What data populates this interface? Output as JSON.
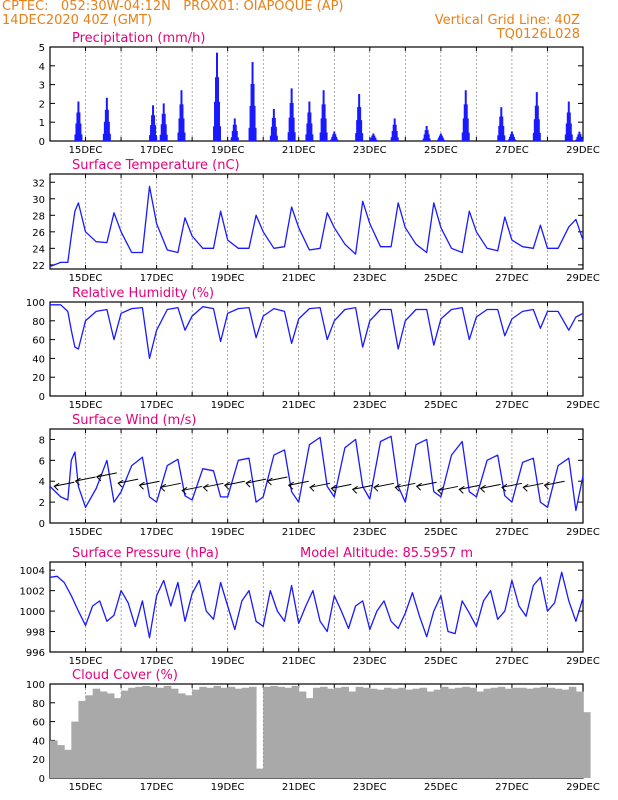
{
  "header": {
    "line1_left": "CPTEC:   052:30W-04:12N   PROX01: OIAPOQUE (AP)",
    "line2_left": "14DEC2020 40Z (GMT)",
    "line2_right": "Vertical Grid Line: 40Z",
    "line3_right": "TQ0126L028"
  },
  "colors": {
    "header": "#e8801a",
    "title": "#e8007a",
    "line": "#1a1aff",
    "cloud": "#a9a9a9"
  },
  "chart_data": [
    {
      "type": "bar",
      "title": "Precipitation (mm/h)",
      "x_tick_labels": [
        "15DEC",
        "17DEC",
        "19DEC",
        "21DEC",
        "23DEC",
        "25DEC",
        "27DEC",
        "29DEC"
      ],
      "ylim": [
        0,
        5
      ],
      "y_ticks": [
        0,
        1,
        2,
        3,
        4,
        5
      ],
      "events": [
        {
          "day": 14.8,
          "peak": 2.1
        },
        {
          "day": 15.6,
          "peak": 2.3
        },
        {
          "day": 16.9,
          "peak": 1.9
        },
        {
          "day": 17.2,
          "peak": 2.0
        },
        {
          "day": 17.7,
          "peak": 2.7
        },
        {
          "day": 18.7,
          "peak": 4.7
        },
        {
          "day": 19.2,
          "peak": 1.2
        },
        {
          "day": 19.7,
          "peak": 4.2
        },
        {
          "day": 20.3,
          "peak": 1.7
        },
        {
          "day": 20.8,
          "peak": 2.8
        },
        {
          "day": 21.3,
          "peak": 2.1
        },
        {
          "day": 21.7,
          "peak": 2.7
        },
        {
          "day": 22.0,
          "peak": 0.5
        },
        {
          "day": 22.7,
          "peak": 2.5
        },
        {
          "day": 23.1,
          "peak": 0.4
        },
        {
          "day": 23.7,
          "peak": 1.2
        },
        {
          "day": 24.6,
          "peak": 0.8
        },
        {
          "day": 25.0,
          "peak": 0.4
        },
        {
          "day": 25.7,
          "peak": 2.7
        },
        {
          "day": 26.7,
          "peak": 1.8
        },
        {
          "day": 27.0,
          "peak": 0.5
        },
        {
          "day": 27.7,
          "peak": 2.6
        },
        {
          "day": 28.6,
          "peak": 2.1
        },
        {
          "day": 28.9,
          "peak": 0.5
        }
      ]
    },
    {
      "type": "line",
      "title": "Surface Temperature (nC)",
      "x_tick_labels": [
        "15DEC",
        "17DEC",
        "19DEC",
        "21DEC",
        "23DEC",
        "25DEC",
        "27DEC",
        "29DEC"
      ],
      "ylim": [
        21.5,
        33
      ],
      "y_ticks": [
        22,
        24,
        26,
        28,
        30,
        32
      ],
      "x": [
        14,
        14.3,
        14.5,
        14.6,
        14.7,
        14.8,
        15.0,
        15.3,
        15.6,
        15.8,
        16.0,
        16.3,
        16.6,
        16.8,
        17.0,
        17.3,
        17.6,
        17.8,
        18.0,
        18.3,
        18.6,
        18.8,
        19.0,
        19.3,
        19.6,
        19.8,
        20.0,
        20.3,
        20.6,
        20.8,
        21.0,
        21.3,
        21.6,
        21.8,
        22.0,
        22.3,
        22.6,
        22.8,
        23.0,
        23.3,
        23.6,
        23.8,
        24.0,
        24.3,
        24.6,
        24.8,
        25.0,
        25.3,
        25.6,
        25.8,
        26.0,
        26.3,
        26.6,
        26.8,
        27.0,
        27.3,
        27.6,
        27.8,
        28.0,
        28.3,
        28.6,
        28.8,
        29.0
      ],
      "y": [
        21.8,
        22.3,
        22.3,
        25.5,
        28.5,
        29.5,
        26.0,
        24.8,
        24.7,
        28.3,
        26.0,
        23.5,
        23.5,
        31.5,
        27.0,
        23.8,
        23.5,
        27.7,
        25.5,
        24.0,
        24.0,
        28.5,
        25.0,
        24.0,
        24.0,
        28.0,
        26.0,
        24.0,
        24.2,
        29.0,
        26.5,
        23.8,
        24.0,
        28.3,
        26.5,
        24.5,
        23.3,
        29.7,
        27.0,
        24.2,
        24.2,
        29.5,
        26.5,
        24.5,
        23.5,
        29.5,
        26.5,
        24.0,
        23.5,
        28.5,
        26.0,
        24.0,
        23.7,
        27.8,
        25.0,
        24.2,
        24.0,
        26.8,
        24.0,
        24.0,
        26.6,
        27.5,
        25.0
      ]
    },
    {
      "type": "line",
      "title": "Relative Humidity (%)",
      "x_tick_labels": [
        "15DEC",
        "17DEC",
        "19DEC",
        "21DEC",
        "23DEC",
        "25DEC",
        "27DEC",
        "29DEC"
      ],
      "ylim": [
        0,
        100
      ],
      "y_ticks": [
        0,
        20,
        40,
        60,
        80,
        100
      ],
      "x": [
        14,
        14.3,
        14.5,
        14.6,
        14.7,
        14.8,
        15.0,
        15.3,
        15.6,
        15.8,
        16.0,
        16.3,
        16.6,
        16.8,
        17.0,
        17.3,
        17.6,
        17.8,
        18.0,
        18.3,
        18.6,
        18.8,
        19.0,
        19.3,
        19.6,
        19.8,
        20.0,
        20.3,
        20.6,
        20.8,
        21.0,
        21.3,
        21.6,
        21.8,
        22.0,
        22.3,
        22.6,
        22.8,
        23.0,
        23.3,
        23.6,
        23.8,
        24.0,
        24.3,
        24.6,
        24.8,
        25.0,
        25.3,
        25.6,
        25.8,
        26.0,
        26.3,
        26.6,
        26.8,
        27.0,
        27.3,
        27.6,
        27.8,
        28.0,
        28.3,
        28.6,
        28.8,
        29.0
      ],
      "y": [
        97,
        97,
        90,
        70,
        52,
        50,
        80,
        90,
        92,
        60,
        88,
        93,
        94,
        40,
        70,
        92,
        94,
        70,
        85,
        95,
        93,
        58,
        88,
        93,
        94,
        62,
        85,
        93,
        90,
        56,
        82,
        93,
        94,
        60,
        80,
        92,
        94,
        52,
        80,
        92,
        92,
        50,
        80,
        92,
        92,
        54,
        82,
        92,
        94,
        60,
        84,
        92,
        92,
        64,
        82,
        90,
        92,
        72,
        90,
        90,
        70,
        84,
        88
      ]
    },
    {
      "type": "line",
      "title": "Surface Wind (m/s)",
      "x_tick_labels": [
        "15DEC",
        "17DEC",
        "19DEC",
        "21DEC",
        "23DEC",
        "25DEC",
        "27DEC",
        "29DEC"
      ],
      "ylim": [
        0,
        9
      ],
      "y_ticks": [
        0,
        2,
        4,
        6,
        8
      ],
      "x": [
        14,
        14.3,
        14.5,
        14.6,
        14.7,
        14.8,
        15.0,
        15.3,
        15.6,
        15.8,
        16.0,
        16.3,
        16.6,
        16.8,
        17.0,
        17.3,
        17.6,
        17.8,
        18.0,
        18.3,
        18.6,
        18.8,
        19.0,
        19.3,
        19.6,
        19.8,
        20.0,
        20.3,
        20.6,
        20.8,
        21.0,
        21.3,
        21.6,
        21.8,
        22.0,
        22.3,
        22.6,
        22.8,
        23.0,
        23.3,
        23.6,
        23.8,
        24.0,
        24.3,
        24.6,
        24.8,
        25.0,
        25.3,
        25.6,
        25.8,
        26.0,
        26.3,
        26.6,
        26.8,
        27.0,
        27.3,
        27.6,
        27.8,
        28.0,
        28.3,
        28.6,
        28.8,
        29.0
      ],
      "y": [
        3.5,
        2.5,
        2.2,
        6.0,
        6.8,
        3.5,
        1.5,
        3.3,
        6.0,
        2.0,
        3.0,
        5.5,
        6.3,
        2.5,
        2.0,
        5.5,
        6.1,
        2.6,
        2.2,
        5.2,
        5.0,
        2.5,
        2.5,
        6.0,
        6.2,
        2.0,
        2.5,
        6.5,
        7.0,
        3.0,
        2.0,
        7.5,
        8.2,
        3.5,
        2.5,
        7.2,
        8.0,
        3.5,
        2.3,
        7.8,
        8.3,
        3.5,
        2.0,
        7.5,
        8.0,
        3.0,
        2.5,
        6.5,
        7.8,
        3.0,
        2.5,
        6.0,
        6.5,
        2.6,
        2.0,
        5.8,
        6.2,
        2.0,
        1.5,
        5.5,
        6.2,
        1.2,
        4.5
      ],
      "arrow_base_y": [
        3.9,
        4.4,
        4.8,
        4.2,
        4.0,
        3.8,
        3.5,
        3.8,
        4.0,
        4.2,
        4.4,
        4.0,
        3.8,
        3.7,
        3.6,
        3.8,
        3.8,
        3.9,
        3.5,
        3.6,
        3.7,
        3.8,
        3.8,
        4.0
      ],
      "arrow_dx": -1,
      "arrow_dy": 0.2
    },
    {
      "type": "line",
      "title": "Surface Pressure (hPa)",
      "annotation": "Model Altitude: 85.5957 m",
      "x_tick_labels": [
        "15DEC",
        "17DEC",
        "19DEC",
        "21DEC",
        "23DEC",
        "25DEC",
        "27DEC",
        "29DEC"
      ],
      "ylim": [
        996,
        1004.8
      ],
      "y_ticks": [
        996,
        998,
        1000,
        1002,
        1004
      ],
      "x": [
        14,
        14.2,
        14.4,
        14.6,
        14.8,
        15.0,
        15.2,
        15.4,
        15.6,
        15.8,
        16.0,
        16.2,
        16.4,
        16.6,
        16.8,
        17.0,
        17.2,
        17.4,
        17.6,
        17.8,
        18.0,
        18.2,
        18.4,
        18.6,
        18.8,
        19.0,
        19.2,
        19.4,
        19.6,
        19.8,
        20.0,
        20.2,
        20.4,
        20.6,
        20.8,
        21.0,
        21.2,
        21.4,
        21.6,
        21.8,
        22.0,
        22.2,
        22.4,
        22.6,
        22.8,
        23.0,
        23.2,
        23.4,
        23.6,
        23.8,
        24.0,
        24.2,
        24.4,
        24.6,
        24.8,
        25.0,
        25.2,
        25.4,
        25.6,
        25.8,
        26.0,
        26.2,
        26.4,
        26.6,
        26.8,
        27.0,
        27.2,
        27.4,
        27.6,
        27.8,
        28.0,
        28.2,
        28.4,
        28.6,
        28.8,
        29.0
      ],
      "y": [
        1003.3,
        1003.4,
        1002.8,
        1001.5,
        1000.0,
        998.6,
        1000.5,
        1001.0,
        999.0,
        999.6,
        1002.0,
        1000.8,
        998.5,
        1001.0,
        997.4,
        1001.5,
        1003.0,
        1000.5,
        1002.8,
        999.0,
        1001.7,
        1003.0,
        1000.0,
        999.2,
        1002.8,
        1000.5,
        998.2,
        1001.0,
        1002.0,
        999.0,
        998.5,
        1002.0,
        1000.0,
        999.0,
        1002.5,
        998.8,
        1000.5,
        1002.0,
        999.0,
        998.0,
        1001.5,
        1000.0,
        998.3,
        1000.5,
        1001.0,
        998.2,
        1000.0,
        1001.0,
        999.0,
        998.3,
        999.8,
        1001.8,
        999.5,
        997.5,
        1000.0,
        1001.5,
        998.0,
        997.8,
        1001.0,
        999.8,
        998.5,
        1001.0,
        1002.0,
        999.2,
        1000.0,
        1003.0,
        1000.5,
        999.5,
        1002.5,
        1003.3,
        1000.0,
        1000.8,
        1003.8,
        1001.0,
        999.0,
        1001.3
      ]
    },
    {
      "type": "bar",
      "title": "Cloud Cover (%)",
      "x_tick_labels": [
        "15DEC",
        "17DEC",
        "19DEC",
        "21DEC",
        "23DEC",
        "25DEC",
        "27DEC",
        "29DEC"
      ],
      "ylim": [
        0,
        100
      ],
      "y_ticks": [
        0,
        20,
        40,
        60,
        80,
        100
      ],
      "x": [
        14,
        14.2,
        14.4,
        14.6,
        14.8,
        15.0,
        15.2,
        15.4,
        15.6,
        15.8,
        16.0,
        16.2,
        16.4,
        16.6,
        16.8,
        17.0,
        17.2,
        17.4,
        17.6,
        17.8,
        18.0,
        18.2,
        18.4,
        18.6,
        18.8,
        19.0,
        19.2,
        19.4,
        19.6,
        19.8,
        20.0,
        20.2,
        20.4,
        20.6,
        20.8,
        21.0,
        21.2,
        21.4,
        21.6,
        21.8,
        22.0,
        22.2,
        22.4,
        22.6,
        22.8,
        23.0,
        23.2,
        23.4,
        23.6,
        23.8,
        24.0,
        24.2,
        24.4,
        24.6,
        24.8,
        25.0,
        25.2,
        25.4,
        25.6,
        25.8,
        26.0,
        26.2,
        26.4,
        26.6,
        26.8,
        27.0,
        27.2,
        27.4,
        27.6,
        27.8,
        28.0,
        28.2,
        28.4,
        28.6,
        28.8,
        29.0
      ],
      "values": [
        40,
        35,
        30,
        60,
        82,
        88,
        95,
        92,
        90,
        85,
        93,
        96,
        97,
        98,
        97,
        96,
        98,
        95,
        90,
        88,
        94,
        97,
        96,
        98,
        96,
        97,
        95,
        96,
        97,
        10,
        97,
        98,
        97,
        96,
        98,
        92,
        85,
        96,
        97,
        95,
        96,
        97,
        92,
        97,
        96,
        95,
        94,
        96,
        95,
        96,
        94,
        95,
        96,
        92,
        94,
        97,
        95,
        96,
        97,
        96,
        92,
        95,
        96,
        97,
        95,
        96,
        96,
        95,
        96,
        97,
        96,
        95,
        94,
        97,
        92,
        70
      ]
    }
  ]
}
